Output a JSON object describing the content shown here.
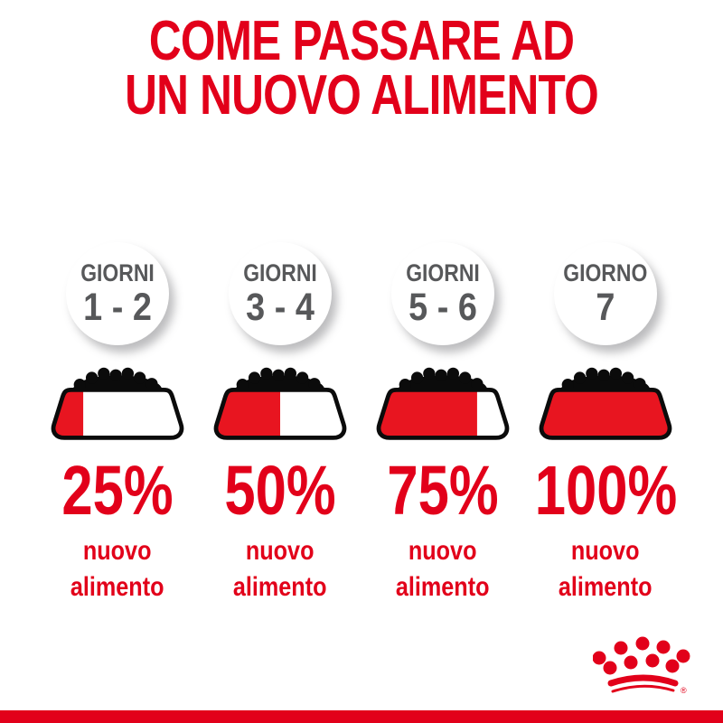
{
  "title": {
    "line1": "COME PASSARE AD",
    "line2": "UN NUOVO ALIMENTO"
  },
  "colors": {
    "brand_red": "#e2001a",
    "bowl_red": "#e81520",
    "gray_text": "#57585a"
  },
  "columns": [
    {
      "day_label": "GIORNI",
      "day_range": "1 - 2",
      "percent": "25%",
      "fill_percent": 25,
      "caption_line1": "nuovo",
      "caption_line2": "alimento"
    },
    {
      "day_label": "GIORNI",
      "day_range": "3 - 4",
      "percent": "50%",
      "fill_percent": 50,
      "caption_line1": "nuovo",
      "caption_line2": "alimento"
    },
    {
      "day_label": "GIORNI",
      "day_range": "5 - 6",
      "percent": "75%",
      "fill_percent": 75,
      "caption_line1": "nuovo",
      "caption_line2": "alimento"
    },
    {
      "day_label": "GIORNO",
      "day_range": "7",
      "percent": "100%",
      "fill_percent": 100,
      "caption_line1": "nuovo",
      "caption_line2": "alimento"
    }
  ],
  "logo": {
    "name": "royal-canin-crown",
    "registered_mark": "®"
  }
}
